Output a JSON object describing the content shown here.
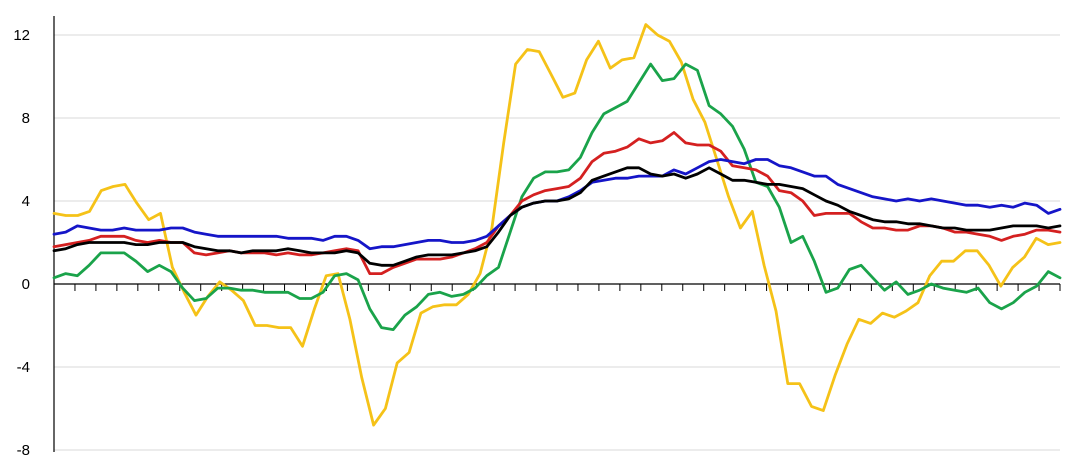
{
  "chart_data": {
    "type": "line",
    "title": "",
    "xlabel": "",
    "ylabel": "",
    "ylim": [
      -8,
      13
    ],
    "yticks": [
      -8,
      -4,
      0,
      4,
      8,
      12
    ],
    "ytick_labels": [
      "-8",
      "-4",
      "0",
      "4",
      "8",
      "12"
    ],
    "grid": true,
    "legend": "none",
    "x_count": 97,
    "series": [
      {
        "color": "#f5c218",
        "values": [
          3.4,
          3.3,
          3.3,
          3.5,
          4.5,
          4.7,
          4.8,
          3.9,
          3.1,
          3.4,
          0.8,
          -0.4,
          -1.5,
          -0.6,
          0.1,
          -0.3,
          -0.8,
          -2.0,
          -2.0,
          -2.1,
          -2.1,
          -3.0,
          -1.2,
          0.4,
          0.5,
          -1.7,
          -4.5,
          -6.8,
          -6.0,
          -3.8,
          -3.3,
          -1.4,
          -1.1,
          -1.0,
          -1.0,
          -0.5,
          0.5,
          2.7,
          6.8,
          10.6,
          11.3,
          11.2,
          10.1,
          9.0,
          9.2,
          10.8,
          11.7,
          10.4,
          10.8,
          10.9,
          12.5,
          12.0,
          11.7,
          10.7,
          8.9,
          7.8,
          6.0,
          4.2,
          2.7,
          3.5,
          0.9,
          -1.3,
          -4.8,
          -4.8,
          -5.9,
          -6.1,
          -4.4,
          -2.9,
          -1.7,
          -1.9,
          -1.4,
          -1.6,
          -1.3,
          -0.9,
          0.4,
          1.1,
          1.1,
          1.6,
          1.6,
          0.9,
          -0.1,
          0.8,
          1.3,
          2.2,
          1.9,
          2.0
        ]
      },
      {
        "color": "#1aa34a",
        "values": [
          0.3,
          0.5,
          0.4,
          0.9,
          1.5,
          1.5,
          1.5,
          1.1,
          0.6,
          0.9,
          0.6,
          -0.2,
          -0.8,
          -0.7,
          -0.2,
          -0.2,
          -0.3,
          -0.3,
          -0.4,
          -0.4,
          -0.4,
          -0.7,
          -0.7,
          -0.4,
          0.4,
          0.5,
          0.2,
          -1.2,
          -2.1,
          -2.2,
          -1.5,
          -1.1,
          -0.5,
          -0.4,
          -0.6,
          -0.5,
          -0.2,
          0.4,
          0.8,
          2.5,
          4.2,
          5.1,
          5.4,
          5.4,
          5.5,
          6.1,
          7.3,
          8.2,
          8.5,
          8.8,
          9.7,
          10.6,
          9.8,
          9.9,
          10.6,
          10.3,
          8.6,
          8.2,
          7.6,
          6.5,
          4.9,
          4.7,
          3.7,
          2.0,
          2.3,
          1.1,
          -0.4,
          -0.2,
          0.7,
          0.9,
          0.3,
          -0.3,
          0.1,
          -0.5,
          -0.3,
          0.0,
          -0.2,
          -0.3,
          -0.4,
          -0.2,
          -0.9,
          -1.2,
          -0.9,
          -0.4,
          -0.1,
          0.6,
          0.3
        ]
      },
      {
        "color": "#d42020",
        "values": [
          1.8,
          1.9,
          2.0,
          2.1,
          2.3,
          2.3,
          2.3,
          2.1,
          2.0,
          2.1,
          2.0,
          2.0,
          1.5,
          1.4,
          1.5,
          1.6,
          1.5,
          1.5,
          1.5,
          1.4,
          1.5,
          1.4,
          1.4,
          1.5,
          1.6,
          1.7,
          1.6,
          0.5,
          0.5,
          0.8,
          1.0,
          1.2,
          1.2,
          1.2,
          1.3,
          1.5,
          1.7,
          2.0,
          2.8,
          3.3,
          4.0,
          4.3,
          4.5,
          4.6,
          4.7,
          5.1,
          5.9,
          6.3,
          6.4,
          6.6,
          7.0,
          6.8,
          6.9,
          7.3,
          6.8,
          6.7,
          6.7,
          6.4,
          5.7,
          5.6,
          5.5,
          5.2,
          4.5,
          4.4,
          4.0,
          3.3,
          3.4,
          3.4,
          3.4,
          3.0,
          2.7,
          2.7,
          2.6,
          2.6,
          2.8,
          2.8,
          2.7,
          2.5,
          2.5,
          2.4,
          2.3,
          2.1,
          2.3,
          2.4,
          2.6,
          2.6,
          2.5
        ]
      },
      {
        "color": "#1515c8",
        "values": [
          2.4,
          2.5,
          2.8,
          2.7,
          2.6,
          2.6,
          2.7,
          2.6,
          2.6,
          2.6,
          2.7,
          2.7,
          2.5,
          2.4,
          2.3,
          2.3,
          2.3,
          2.3,
          2.3,
          2.3,
          2.2,
          2.2,
          2.2,
          2.1,
          2.3,
          2.3,
          2.1,
          1.7,
          1.8,
          1.8,
          1.9,
          2.0,
          2.1,
          2.1,
          2.0,
          2.0,
          2.1,
          2.3,
          2.8,
          3.3,
          3.7,
          3.9,
          4.0,
          4.0,
          4.2,
          4.5,
          4.9,
          5.0,
          5.1,
          5.1,
          5.2,
          5.2,
          5.2,
          5.5,
          5.3,
          5.6,
          5.9,
          6.0,
          5.9,
          5.8,
          6.0,
          6.0,
          5.7,
          5.6,
          5.4,
          5.2,
          5.2,
          4.8,
          4.6,
          4.4,
          4.2,
          4.1,
          4.0,
          4.1,
          4.0,
          4.1,
          4.0,
          3.9,
          3.8,
          3.8,
          3.7,
          3.8,
          3.7,
          3.9,
          3.8,
          3.4,
          3.6
        ]
      },
      {
        "color": "#000000",
        "values": [
          1.6,
          1.7,
          1.9,
          2.0,
          2.0,
          2.0,
          2.0,
          1.9,
          1.9,
          2.0,
          2.0,
          2.0,
          1.8,
          1.7,
          1.6,
          1.6,
          1.5,
          1.6,
          1.6,
          1.6,
          1.7,
          1.6,
          1.5,
          1.5,
          1.5,
          1.6,
          1.5,
          1.0,
          0.9,
          0.9,
          1.1,
          1.3,
          1.4,
          1.4,
          1.4,
          1.5,
          1.6,
          1.8,
          2.5,
          3.3,
          3.7,
          3.9,
          4.0,
          4.0,
          4.1,
          4.4,
          5.0,
          5.2,
          5.4,
          5.6,
          5.6,
          5.3,
          5.2,
          5.3,
          5.1,
          5.3,
          5.6,
          5.3,
          5.0,
          5.0,
          4.9,
          4.8,
          4.8,
          4.7,
          4.6,
          4.3,
          4.0,
          3.8,
          3.5,
          3.3,
          3.1,
          3.0,
          3.0,
          2.9,
          2.9,
          2.8,
          2.7,
          2.7,
          2.6,
          2.6,
          2.6,
          2.7,
          2.8,
          2.8,
          2.8,
          2.7,
          2.8
        ]
      }
    ]
  }
}
